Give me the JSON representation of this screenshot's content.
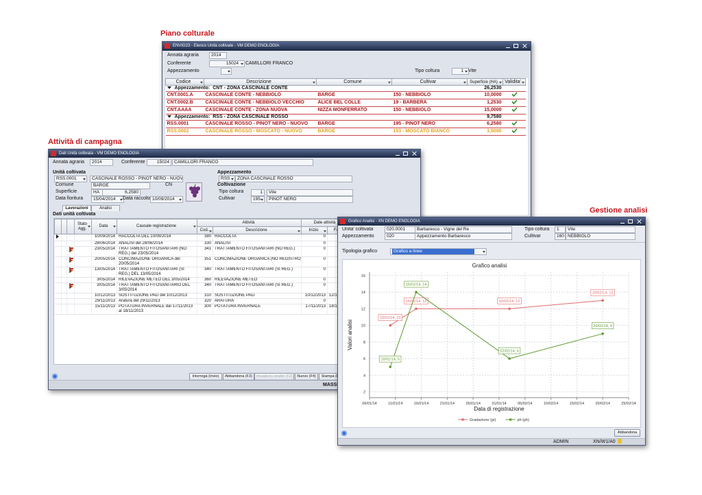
{
  "captions": {
    "piano": "Piano colturale",
    "attivita": "Attività di campagna",
    "gestione": "Gestione analisi"
  },
  "windows": {
    "piano": {
      "title": "ENVIG23 - Elenco Unità coltivate - VM  DEMO ENOLOGIA",
      "annata_label": "Annata agraria",
      "annata": "2014",
      "conferente_label": "Conferente",
      "conferente_code": "15024",
      "conferente_name": "CAMILLORI FRANCO",
      "appezzamento_label": "Appezzamento",
      "tipo_label": "Tipo coltura",
      "tipo_code": "1",
      "tipo_name": "Vite",
      "headers": [
        "Codice",
        "Descrizione",
        "Comune",
        "Cultivar",
        "Superficie (HA)",
        "Validita'"
      ],
      "groups": [
        {
          "label": "Appezzamento:",
          "name": "CNT - ZONA CASCINALE CONTE",
          "total": "26,2530",
          "rows": [
            {
              "cells": [
                "CNT.0001.A",
                "CASCINALE CONTE - NEBBIOLO",
                "BARGE",
                "150 - NEBBIOLO",
                "10,0000"
              ],
              "color": "#a8161b"
            },
            {
              "cells": [
                "CNT.0002.B",
                "CASCINALE CONTE - NEBBIOLO VECCHIO",
                "ALICE BEL COLLE",
                "19 - BARBERA",
                "1,2530"
              ],
              "color": "#a8161b"
            },
            {
              "cells": [
                "CNT.AAAA",
                "CASCINALE CONTE - ZONA NUOVA",
                "NIZZA MONFERRATO",
                "150 - NEBBIOLO",
                "15,0000"
              ],
              "color": "#a8161b"
            }
          ]
        },
        {
          "label": "Appezzamento:",
          "name": "RSS - ZONA CASCINALE ROSSO",
          "total": "9,7580",
          "rows": [
            {
              "cells": [
                "RSS.0001",
                "CASCINALE ROSSO - PINOT NERO - NUOVO",
                "BARGE",
                "195 - PINOT NERO",
                "6,2580"
              ],
              "color": "#a8161b"
            },
            {
              "cells": [
                "RSS.0002",
                "CASCINALE ROSSO - MOSCATO - NUOVO",
                "BARGE",
                "153 - MOSCATO BIANCO",
                "3,5000"
              ],
              "color": "#e3a21a"
            }
          ]
        }
      ]
    },
    "attivita": {
      "title": "Dati Unità coltivata - VM  DEMO ENOLOGIA",
      "annata_label": "Annata agraria",
      "annata": "2014",
      "conferente_label": "Conferente",
      "conferente_code": "15024",
      "conferente_name": "CAMILLORI FRANCO",
      "unita_label": "Unità coltivata",
      "unita_code": "RSS.0001",
      "unita_name": "CASCINALE ROSSO - PINOT NERO - NUOVO",
      "comune_label": "Comune",
      "comune": "BARGE",
      "provincia": "CN",
      "superficie_label": "Superficie",
      "superficie_unit": "HA",
      "superficie": "6,2580",
      "fioritura_label": "Data fioritura",
      "fioritura": "15/04/2014",
      "raccolta_label": "Data raccolta",
      "raccolta": "10/09/2014",
      "appezzamento_label": "Appezzamento",
      "appezzamento_code": "RSS",
      "appezzamento_name": "ZONA CASCINALE ROSSO",
      "coltivazione_label": "Coltivazione",
      "tipo_label": "Tipo coltura",
      "tipo_code": "1",
      "tipo_name": "Vite",
      "cultivar_label": "Cultivar",
      "cultivar_code": "195",
      "cultivar_name": "PINOT NERO",
      "tabs": [
        "Lavorazioni",
        "Analisi"
      ],
      "section": "Dati unità coltivata",
      "headers": {
        "stato": "Stato Agg.",
        "data": "Data",
        "causale": "Causale registrazione",
        "attivita": "Attività",
        "cod": "Cod.",
        "descrizione": "Descrizione",
        "date_attivita": "Date attività",
        "inizio": "Inizio",
        "fine": "Fine"
      },
      "rows": [
        {
          "data": "10/09/2014",
          "causale": "RACCOLTA DEL 10/09/2014",
          "cod": "380",
          "descrizione": "RACCOLTA",
          "inizio": "0"
        },
        {
          "data": "28/06/2014",
          "causale": "ANALISI del 28/06/2014",
          "cod": "330",
          "descrizione": "ANALISI",
          "inizio": "0"
        },
        {
          "data": "23/05/2014",
          "causale": "TRATTAMENTO FITOSANITARI (NO REG.) del 23/05/2014",
          "cod": "341",
          "descrizione": "TRATTAMENTO FITOSANITARI (NO REG.)",
          "inizio": "0",
          "stato_agg": true
        },
        {
          "data": "20/05/2014",
          "causale": "CONCIMAZIONE ORGANICA del 20/05/2014",
          "cod": "351",
          "descrizione": "CONCIMAZIONE ORGANICA (NO REGISTRO)",
          "inizio": "0",
          "stato_agg": true
        },
        {
          "data": "13/05/2014",
          "causale": "TRATTAMENTO FITOSANITARI (SI REG.) DEL 13/05/2014",
          "cod": "340",
          "descrizione": "TRATTAMENTO FITOSANITARI (SI REG.)",
          "inizio": "0",
          "stato_agg": true
        },
        {
          "data": "3/05/2014",
          "causale": "RILEVAZIONE METEO DEL 3/05/2014",
          "cod": "360",
          "descrizione": "RILEVAZIONE METEO",
          "inizio": "0"
        },
        {
          "data": "3/05/2014",
          "causale": "TRATTAMENTO FITOSANITARIO DEL 3/05/2014",
          "cod": "340",
          "descrizione": "TRATTAMENTO FITOSANITARI (SI REG.)",
          "inizio": "0",
          "stato_agg": true
        },
        {
          "data": "10/12/2013",
          "causale": "SOSTITUZIONE PALI del 10/12/2013",
          "cod": "310",
          "descrizione": "SOSTITUZIONE PALI",
          "inizio": "10/12/2013",
          "fine": "12/12"
        },
        {
          "data": "29/11/2013",
          "causale": "Aratura del 29/11/2013",
          "cod": "320",
          "descrizione": "ARATURA",
          "inizio": "0"
        },
        {
          "data": "15/11/2013",
          "causale": "POTATURA INVERNALE dal 17/11/2013 al 18/11/2013",
          "cod": "300",
          "descrizione": "POTATURA INVERNALE",
          "inizio": "17/11/2013",
          "fine": "18/1"
        }
      ],
      "buttons": [
        "Interroga (Invio)",
        "Abbandona (F3)",
        "Visualizza analisi (F2)",
        "Nuovo (F4)",
        "Stampa (F5"
      ],
      "status_user": "MASSIM"
    },
    "analisi": {
      "title": "Grafico Analisi - XN  DEMO ENOLOGIA",
      "unita_label": "Unita' coltivata",
      "unita_code": "020.0001",
      "unita_name": "Barbaresco - Vigne del Re",
      "tipo_label": "Tipo coltura",
      "tipo_code": "1",
      "tipo_name": "Vite",
      "appezzamento_label": "Appezzamento",
      "appezzamento_code": "020",
      "appezzamento_name": "Appezzamento Barbaresco",
      "cultivar_label": "Cultivar",
      "cultivar_code": "160",
      "cultivar_name": "NEBBIOLO",
      "tipologia_label": "Tipologia grafico",
      "tipologia": "Grafico a linee",
      "button": "Abbandona",
      "status_user": "ADMIN",
      "status_env": "XN/W1/A0"
    }
  },
  "chart_data": {
    "type": "line",
    "title": "Grafico analisi",
    "x_label": "Data di registrazione",
    "y_label": "Valori analisi",
    "x": [
      "10/01/14",
      "15/01/14",
      "02/02/14",
      "20/02/14"
    ],
    "xlim": [
      "06/01/14",
      "25/02/14"
    ],
    "xticks": [
      "06/01/14",
      "11/01/14",
      "16/01/14",
      "21/01/14",
      "26/01/14",
      "31/01/14",
      "05/02/14",
      "10/02/14",
      "15/02/14",
      "20/02/14",
      "25/02/14"
    ],
    "ylim": [
      1.3,
      16.4
    ],
    "yticks": [
      2,
      4,
      6,
      8,
      10,
      12,
      14,
      16
    ],
    "grid": true,
    "series": [
      {
        "name": "Gradazione (gr)",
        "color": "#e06b6b",
        "values": [
          10,
          12,
          12,
          13
        ],
        "value_labels": [
          "10/01/14, 10",
          "15/01/14, 12",
          "02/02/14, 12",
          "20/02/14, 13"
        ]
      },
      {
        "name": "ph (ph)",
        "color": "#5e9a2e",
        "values": [
          5,
          14,
          6,
          9
        ],
        "value_labels": [
          "10/01/14, 5",
          "15/01/14, 14",
          "02/02/14, 6",
          "20/02/14, 9"
        ]
      }
    ]
  }
}
